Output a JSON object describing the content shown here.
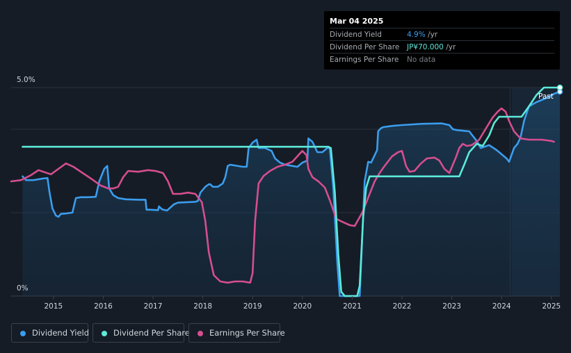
{
  "tooltip": {
    "date": "Mar 04 2025",
    "rows": [
      {
        "label": "Dividend Yield",
        "value": "4.9%",
        "unit": " /yr",
        "color": "#3b9ded"
      },
      {
        "label": "Dividend Per Share",
        "value": "JP¥70.000",
        "unit": " /yr",
        "color": "#5de9d9"
      },
      {
        "label": "Earnings Per Share",
        "value": "No data",
        "unit": "",
        "color": "#7a7f87"
      }
    ]
  },
  "past_label": "Past",
  "legend": [
    {
      "label": "Dividend Yield",
      "color": "#3b9ded"
    },
    {
      "label": "Dividend Per Share",
      "color": "#5de9d9"
    },
    {
      "label": "Earnings Per Share",
      "color": "#d64e8f"
    }
  ],
  "chart_data": {
    "type": "line",
    "ylabel_top": "5.0%",
    "ylabel_bottom": "0%",
    "xlim": [
      2014.15,
      2025.17
    ],
    "ylim": [
      0,
      5.0
    ],
    "x_ticks": [
      2015,
      2016,
      2017,
      2018,
      2019,
      2020,
      2021,
      2022,
      2023,
      2024,
      2025
    ],
    "x_tick_labels": [
      "2015",
      "2016",
      "2017",
      "2018",
      "2019",
      "2020",
      "2021",
      "2022",
      "2023",
      "2024",
      "2025"
    ],
    "past_start": 2024.17,
    "series": [
      {
        "name": "Dividend Yield",
        "color": "#3b9ded",
        "points": [
          [
            2014.38,
            2.87
          ],
          [
            2014.45,
            2.78
          ],
          [
            2014.6,
            2.78
          ],
          [
            2014.8,
            2.82
          ],
          [
            2014.88,
            2.83
          ],
          [
            2014.92,
            2.5
          ],
          [
            2014.98,
            2.1
          ],
          [
            2015.05,
            1.93
          ],
          [
            2015.1,
            1.9
          ],
          [
            2015.15,
            1.97
          ],
          [
            2015.25,
            1.98
          ],
          [
            2015.38,
            2.0
          ],
          [
            2015.45,
            2.35
          ],
          [
            2015.55,
            2.37
          ],
          [
            2015.7,
            2.37
          ],
          [
            2015.85,
            2.38
          ],
          [
            2015.92,
            2.75
          ],
          [
            2016.02,
            3.05
          ],
          [
            2016.08,
            3.12
          ],
          [
            2016.12,
            2.58
          ],
          [
            2016.2,
            2.42
          ],
          [
            2016.3,
            2.35
          ],
          [
            2016.45,
            2.32
          ],
          [
            2016.7,
            2.31
          ],
          [
            2016.85,
            2.31
          ],
          [
            2016.87,
            2.07
          ],
          [
            2016.95,
            2.07
          ],
          [
            2017.1,
            2.06
          ],
          [
            2017.12,
            2.15
          ],
          [
            2017.18,
            2.08
          ],
          [
            2017.28,
            2.05
          ],
          [
            2017.42,
            2.2
          ],
          [
            2017.5,
            2.24
          ],
          [
            2017.85,
            2.26
          ],
          [
            2017.9,
            2.28
          ],
          [
            2017.95,
            2.48
          ],
          [
            2018.05,
            2.62
          ],
          [
            2018.12,
            2.68
          ],
          [
            2018.15,
            2.68
          ],
          [
            2018.2,
            2.62
          ],
          [
            2018.3,
            2.62
          ],
          [
            2018.4,
            2.7
          ],
          [
            2018.45,
            2.85
          ],
          [
            2018.5,
            3.12
          ],
          [
            2018.55,
            3.15
          ],
          [
            2018.8,
            3.1
          ],
          [
            2018.88,
            3.1
          ],
          [
            2018.92,
            3.55
          ],
          [
            2019.0,
            3.68
          ],
          [
            2019.08,
            3.75
          ],
          [
            2019.12,
            3.55
          ],
          [
            2019.25,
            3.55
          ],
          [
            2019.38,
            3.48
          ],
          [
            2019.45,
            3.3
          ],
          [
            2019.55,
            3.2
          ],
          [
            2019.65,
            3.15
          ],
          [
            2019.8,
            3.12
          ],
          [
            2019.9,
            3.1
          ],
          [
            2020.0,
            3.2
          ],
          [
            2020.1,
            3.25
          ],
          [
            2020.12,
            3.78
          ],
          [
            2020.2,
            3.7
          ],
          [
            2020.3,
            3.45
          ],
          [
            2020.4,
            3.45
          ],
          [
            2020.5,
            3.55
          ],
          [
            2020.55,
            3.55
          ],
          [
            2020.62,
            2.6
          ],
          [
            2020.7,
            0.8
          ],
          [
            2020.75,
            0.0
          ],
          [
            2021.15,
            0.0
          ],
          [
            2021.25,
            2.75
          ],
          [
            2021.32,
            3.22
          ],
          [
            2021.38,
            3.2
          ],
          [
            2021.42,
            3.3
          ],
          [
            2021.5,
            3.5
          ],
          [
            2021.52,
            3.95
          ],
          [
            2021.57,
            4.02
          ],
          [
            2021.62,
            4.05
          ],
          [
            2021.8,
            4.08
          ],
          [
            2022.0,
            4.1
          ],
          [
            2022.4,
            4.13
          ],
          [
            2022.8,
            4.14
          ],
          [
            2022.95,
            4.1
          ],
          [
            2023.02,
            4.0
          ],
          [
            2023.1,
            3.98
          ],
          [
            2023.35,
            3.95
          ],
          [
            2023.5,
            3.72
          ],
          [
            2023.58,
            3.55
          ],
          [
            2023.75,
            3.62
          ],
          [
            2023.9,
            3.5
          ],
          [
            2024.1,
            3.3
          ],
          [
            2024.15,
            3.22
          ],
          [
            2024.25,
            3.55
          ],
          [
            2024.32,
            3.65
          ],
          [
            2024.38,
            3.8
          ],
          [
            2024.45,
            4.2
          ],
          [
            2024.55,
            4.55
          ],
          [
            2024.7,
            4.65
          ],
          [
            2024.9,
            4.75
          ],
          [
            2025.05,
            4.85
          ],
          [
            2025.17,
            4.9
          ]
        ]
      },
      {
        "name": "Dividend Per Share",
        "color": "#5de9d9",
        "points": [
          [
            2014.38,
            3.58
          ],
          [
            2020.52,
            3.58
          ],
          [
            2020.57,
            3.55
          ],
          [
            2020.65,
            2.5
          ],
          [
            2020.72,
            1.0
          ],
          [
            2020.78,
            0.1
          ],
          [
            2020.85,
            0.0
          ],
          [
            2021.1,
            0.0
          ],
          [
            2021.15,
            0.25
          ],
          [
            2021.22,
            1.9
          ],
          [
            2021.28,
            2.6
          ],
          [
            2021.35,
            2.87
          ],
          [
            2023.15,
            2.87
          ],
          [
            2023.25,
            3.15
          ],
          [
            2023.35,
            3.45
          ],
          [
            2023.5,
            3.65
          ],
          [
            2023.62,
            3.6
          ],
          [
            2023.75,
            3.85
          ],
          [
            2023.85,
            4.15
          ],
          [
            2023.95,
            4.3
          ],
          [
            2024.4,
            4.3
          ],
          [
            2024.55,
            4.55
          ],
          [
            2024.7,
            4.82
          ],
          [
            2024.85,
            5.0
          ],
          [
            2025.17,
            5.0
          ]
        ]
      },
      {
        "name": "Earnings Per Share",
        "color": "#d64e8f",
        "points": [
          [
            2014.15,
            2.75
          ],
          [
            2014.35,
            2.78
          ],
          [
            2014.55,
            2.9
          ],
          [
            2014.7,
            3.02
          ],
          [
            2014.82,
            2.97
          ],
          [
            2014.95,
            2.92
          ],
          [
            2015.1,
            3.05
          ],
          [
            2015.25,
            3.18
          ],
          [
            2015.4,
            3.1
          ],
          [
            2015.55,
            2.98
          ],
          [
            2015.75,
            2.82
          ],
          [
            2015.95,
            2.65
          ],
          [
            2016.1,
            2.58
          ],
          [
            2016.2,
            2.58
          ],
          [
            2016.3,
            2.62
          ],
          [
            2016.4,
            2.85
          ],
          [
            2016.5,
            3.0
          ],
          [
            2016.7,
            2.98
          ],
          [
            2016.9,
            3.02
          ],
          [
            2017.05,
            3.0
          ],
          [
            2017.2,
            2.95
          ],
          [
            2017.3,
            2.75
          ],
          [
            2017.4,
            2.45
          ],
          [
            2017.55,
            2.45
          ],
          [
            2017.7,
            2.48
          ],
          [
            2017.85,
            2.45
          ],
          [
            2017.98,
            2.25
          ],
          [
            2018.05,
            1.8
          ],
          [
            2018.12,
            1.05
          ],
          [
            2018.22,
            0.5
          ],
          [
            2018.35,
            0.35
          ],
          [
            2018.5,
            0.32
          ],
          [
            2018.65,
            0.35
          ],
          [
            2018.8,
            0.35
          ],
          [
            2018.95,
            0.32
          ],
          [
            2019.0,
            0.55
          ],
          [
            2019.05,
            1.8
          ],
          [
            2019.12,
            2.7
          ],
          [
            2019.22,
            2.88
          ],
          [
            2019.35,
            3.0
          ],
          [
            2019.5,
            3.1
          ],
          [
            2019.65,
            3.15
          ],
          [
            2019.8,
            3.22
          ],
          [
            2019.92,
            3.38
          ],
          [
            2020.0,
            3.48
          ],
          [
            2020.08,
            3.38
          ],
          [
            2020.12,
            3.05
          ],
          [
            2020.2,
            2.85
          ],
          [
            2020.32,
            2.75
          ],
          [
            2020.45,
            2.6
          ],
          [
            2020.55,
            2.3
          ],
          [
            2020.68,
            1.85
          ],
          [
            2020.8,
            1.78
          ],
          [
            2020.95,
            1.7
          ],
          [
            2021.05,
            1.68
          ],
          [
            2021.2,
            2.0
          ],
          [
            2021.35,
            2.45
          ],
          [
            2021.45,
            2.75
          ],
          [
            2021.55,
            2.95
          ],
          [
            2021.65,
            3.12
          ],
          [
            2021.8,
            3.35
          ],
          [
            2021.92,
            3.45
          ],
          [
            2022.0,
            3.48
          ],
          [
            2022.08,
            3.12
          ],
          [
            2022.15,
            2.98
          ],
          [
            2022.25,
            3.0
          ],
          [
            2022.38,
            3.18
          ],
          [
            2022.5,
            3.3
          ],
          [
            2022.65,
            3.32
          ],
          [
            2022.75,
            3.25
          ],
          [
            2022.85,
            3.05
          ],
          [
            2022.95,
            2.95
          ],
          [
            2023.08,
            3.32
          ],
          [
            2023.15,
            3.55
          ],
          [
            2023.22,
            3.65
          ],
          [
            2023.3,
            3.6
          ],
          [
            2023.4,
            3.62
          ],
          [
            2023.55,
            3.75
          ],
          [
            2023.7,
            4.05
          ],
          [
            2023.82,
            4.28
          ],
          [
            2023.92,
            4.42
          ],
          [
            2024.0,
            4.5
          ],
          [
            2024.08,
            4.42
          ],
          [
            2024.15,
            4.2
          ],
          [
            2024.25,
            3.95
          ],
          [
            2024.38,
            3.78
          ],
          [
            2024.55,
            3.75
          ],
          [
            2024.8,
            3.75
          ],
          [
            2025.0,
            3.72
          ],
          [
            2025.05,
            3.7
          ]
        ]
      }
    ]
  }
}
